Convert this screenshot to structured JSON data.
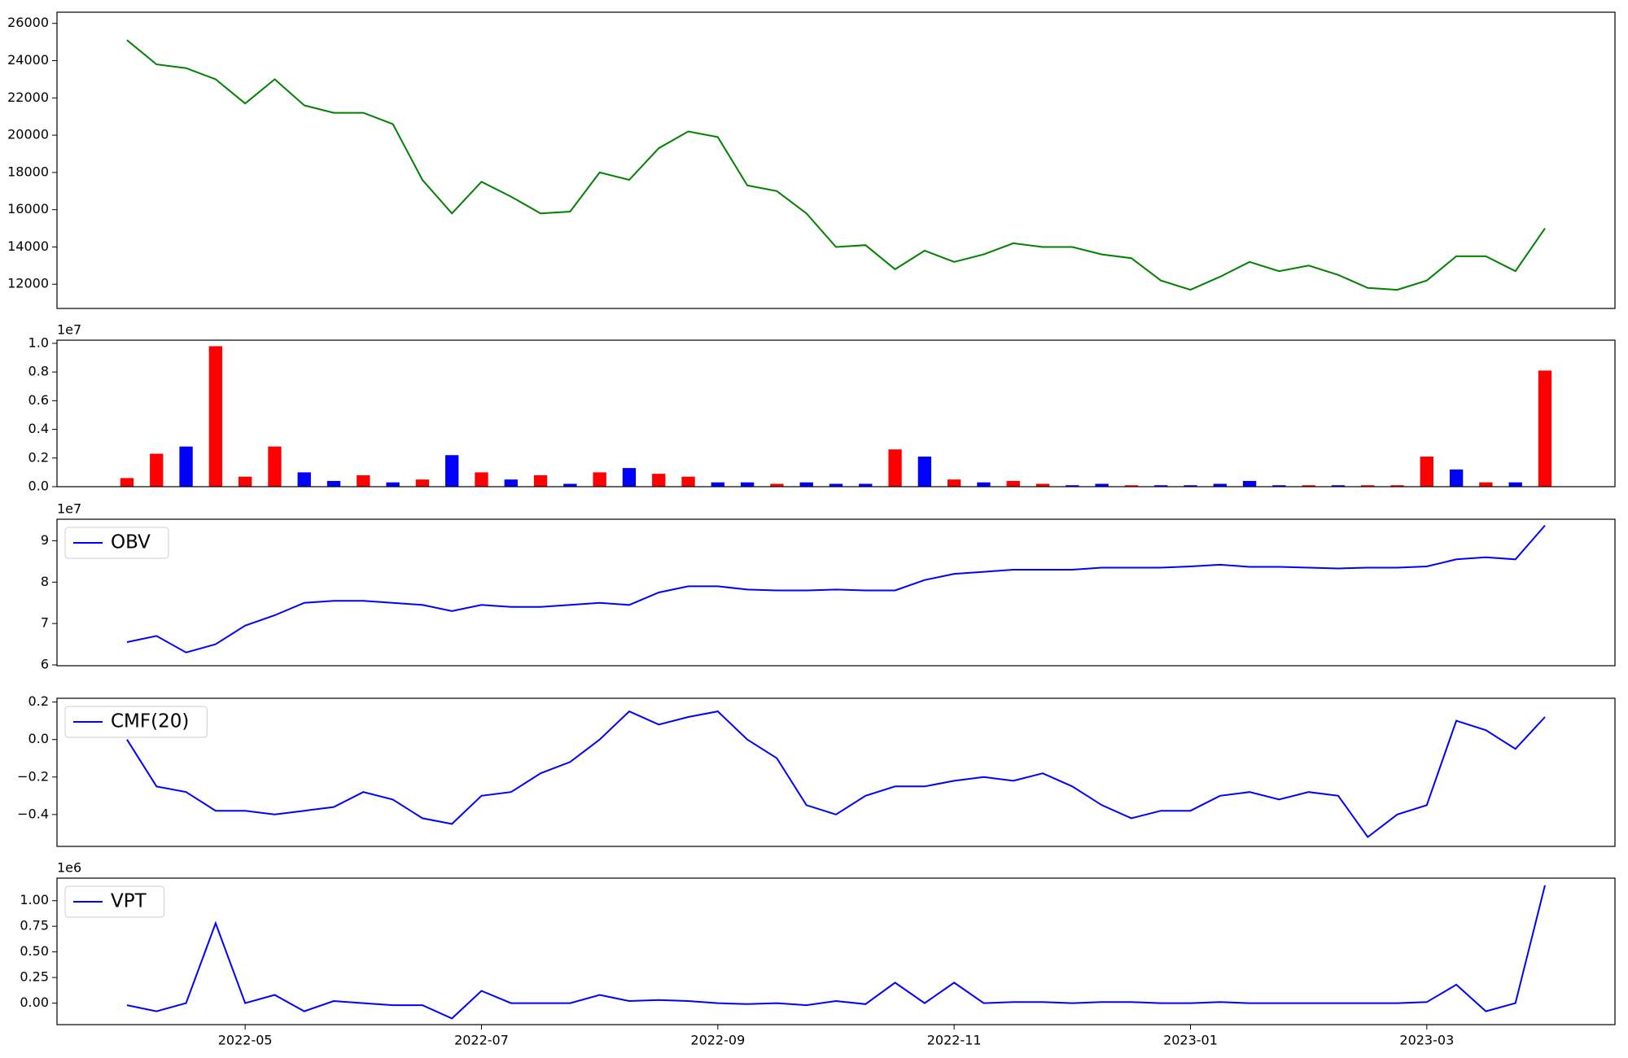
{
  "chart_data": [
    {
      "type": "line",
      "color": "#008000",
      "values": [
        25100,
        23800,
        23600,
        23000,
        21700,
        23000,
        21600,
        21200,
        21200,
        20600,
        17600,
        15800,
        17500,
        16700,
        15800,
        15900,
        18000,
        17600,
        19300,
        20200,
        19900,
        17300,
        17000,
        15800,
        14000,
        14100,
        12800,
        13800,
        13200,
        13600,
        14200,
        14000,
        14000,
        13600,
        13400,
        12200,
        11700,
        12400,
        13200,
        12700,
        13000,
        12500,
        11800,
        11700,
        12200,
        13500,
        13500,
        12700,
        15000
      ],
      "ylim": [
        10700,
        26600
      ],
      "yticks": [
        12000,
        14000,
        16000,
        18000,
        20000,
        22000,
        24000,
        26000
      ]
    },
    {
      "type": "bar",
      "offset_text": "1e7",
      "values": [
        600000,
        2300000,
        2800000,
        9800000,
        700000,
        2800000,
        1000000,
        400000,
        800000,
        300000,
        500000,
        2200000,
        1000000,
        500000,
        800000,
        200000,
        1000000,
        1300000,
        900000,
        700000,
        300000,
        300000,
        200000,
        300000,
        200000,
        200000,
        2600000,
        2100000,
        500000,
        300000,
        400000,
        200000,
        100000,
        200000,
        100000,
        100000,
        100000,
        200000,
        400000,
        100000,
        100000,
        100000,
        100000,
        100000,
        2100000,
        1200000,
        300000,
        300000,
        8100000
      ],
      "colors": [
        "#ff0000",
        "#ff0000",
        "#0000ff",
        "#ff0000",
        "#ff0000",
        "#ff0000",
        "#0000ff",
        "#0000ff",
        "#ff0000",
        "#0000ff",
        "#ff0000",
        "#0000ff",
        "#ff0000",
        "#0000ff",
        "#ff0000",
        "#0000ff",
        "#ff0000",
        "#0000ff",
        "#ff0000",
        "#ff0000",
        "#0000ff",
        "#0000ff",
        "#ff0000",
        "#0000ff",
        "#0000ff",
        "#0000ff",
        "#ff0000",
        "#0000ff",
        "#ff0000",
        "#0000ff",
        "#ff0000",
        "#ff0000",
        "#0000ff",
        "#0000ff",
        "#ff0000",
        "#0000ff",
        "#0000ff",
        "#0000ff",
        "#0000ff",
        "#0000ff",
        "#ff0000",
        "#0000ff",
        "#ff0000",
        "#ff0000",
        "#ff0000",
        "#0000ff",
        "#ff0000",
        "#0000ff",
        "#ff0000"
      ],
      "ylim": [
        0,
        10220000
      ],
      "yticks": [
        {
          "value": 0,
          "label": "0.0"
        },
        {
          "value": 2000000,
          "label": "0.2"
        },
        {
          "value": 4000000,
          "label": "0.4"
        },
        {
          "value": 6000000,
          "label": "0.6"
        },
        {
          "value": 8000000,
          "label": "0.8"
        },
        {
          "value": 10000000,
          "label": "1.0"
        }
      ]
    },
    {
      "type": "line",
      "offset_text": "1e7",
      "legend": "upper left",
      "series": [
        {
          "name": "OBV",
          "color": "#0000ff",
          "values": [
            65500000,
            67000000,
            63000000,
            65000000,
            69500000,
            72000000,
            75000000,
            75500000,
            75500000,
            75000000,
            74500000,
            73000000,
            74500000,
            74000000,
            74000000,
            74500000,
            75000000,
            74500000,
            77500000,
            79000000,
            79000000,
            78200000,
            78000000,
            78000000,
            78200000,
            78000000,
            78000000,
            80500000,
            82000000,
            82500000,
            83000000,
            83000000,
            83000000,
            83500000,
            83500000,
            83500000,
            83800000,
            84200000,
            83700000,
            83700000,
            83500000,
            83300000,
            83500000,
            83500000,
            83800000,
            85500000,
            86000000,
            85500000,
            93700000
          ]
        }
      ],
      "ylim": [
        59800000,
        95200000
      ],
      "yticks": [
        {
          "value": 60000000,
          "label": "6"
        },
        {
          "value": 70000000,
          "label": "7"
        },
        {
          "value": 80000000,
          "label": "8"
        },
        {
          "value": 90000000,
          "label": "9"
        }
      ]
    },
    {
      "type": "line",
      "legend": "upper left",
      "series": [
        {
          "name": "CMF(20)",
          "color": "#0000ff",
          "values": [
            0.0,
            -0.25,
            -0.28,
            -0.38,
            -0.38,
            -0.4,
            -0.38,
            -0.36,
            -0.28,
            -0.32,
            -0.42,
            -0.45,
            -0.3,
            -0.28,
            -0.18,
            -0.12,
            0.0,
            0.15,
            0.08,
            0.12,
            0.15,
            0.0,
            -0.1,
            -0.35,
            -0.4,
            -0.3,
            -0.25,
            -0.25,
            -0.22,
            -0.2,
            -0.22,
            -0.18,
            -0.25,
            -0.35,
            -0.42,
            -0.38,
            -0.38,
            -0.3,
            -0.28,
            -0.32,
            -0.28,
            -0.3,
            -0.52,
            -0.4,
            -0.35,
            0.1,
            0.05,
            -0.05,
            0.12
          ]
        }
      ],
      "ylim": [
        -0.57,
        0.22
      ],
      "yticks": [
        {
          "value": -0.4,
          "label": "−0.4"
        },
        {
          "value": -0.2,
          "label": "−0.2"
        },
        {
          "value": 0,
          "label": "0.0"
        },
        0.2
      ]
    },
    {
      "type": "line",
      "offset_text": "1e6",
      "legend": "upper left",
      "categories": [
        null,
        null,
        null,
        null,
        "2022-05",
        null,
        null,
        null,
        null,
        null,
        null,
        null,
        "2022-07",
        null,
        null,
        null,
        null,
        null,
        null,
        null,
        "2022-09",
        null,
        null,
        null,
        null,
        null,
        null,
        null,
        "2022-11",
        null,
        null,
        null,
        null,
        null,
        null,
        null,
        "2023-01",
        null,
        null,
        null,
        null,
        null,
        null,
        null,
        "2023-03",
        null,
        null,
        null,
        null
      ],
      "series": [
        {
          "name": "VPT",
          "color": "#0000ff",
          "values": [
            -20000,
            -80000,
            0,
            780000,
            0,
            80000,
            -80000,
            20000,
            0,
            -20000,
            -20000,
            -150000,
            120000,
            0,
            0,
            0,
            80000,
            20000,
            30000,
            20000,
            0,
            -10000,
            0,
            -20000,
            20000,
            -10000,
            200000,
            0,
            200000,
            0,
            10000,
            10000,
            0,
            10000,
            10000,
            0,
            0,
            10000,
            0,
            0,
            0,
            0,
            0,
            0,
            10000,
            180000,
            -80000,
            0,
            1150000
          ]
        }
      ],
      "ylim": [
        -210000,
        1220000
      ],
      "yticks": [
        {
          "value": 0,
          "label": "0.00"
        },
        {
          "value": 250000,
          "label": "0.25"
        },
        {
          "value": 500000,
          "label": "0.50"
        },
        {
          "value": 750000,
          "label": "0.75"
        },
        {
          "value": 1000000,
          "label": "1.00"
        }
      ]
    }
  ]
}
